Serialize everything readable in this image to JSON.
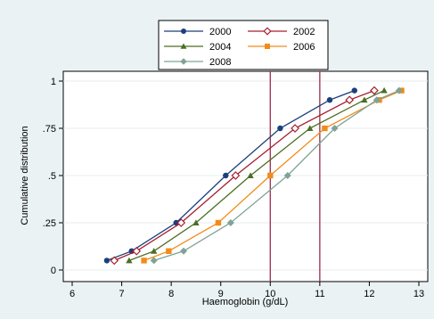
{
  "chart_data": {
    "type": "line",
    "xlabel": "Haemoglobin (g/dL)",
    "ylabel": "Cumulative distribution",
    "xlim": [
      6,
      13
    ],
    "ylim": [
      0,
      1
    ],
    "xticks": [
      6,
      7,
      8,
      9,
      10,
      11,
      12,
      13
    ],
    "xtick_labels": [
      "6",
      "7",
      "8",
      "9",
      "10",
      "11",
      "12",
      "13"
    ],
    "yticks": [
      0,
      0.25,
      0.5,
      0.75,
      1
    ],
    "ytick_labels": [
      "0",
      ".25",
      ".5",
      ".75",
      "1"
    ],
    "grid": true,
    "legend_position": "top",
    "reference_lines_x": [
      10,
      11
    ],
    "reference_line_color": "#9b2c4b",
    "series": [
      {
        "name": "2000",
        "color": "#1c3f7c",
        "marker": "circle",
        "x": [
          6.7,
          7.2,
          8.1,
          9.1,
          10.2,
          11.2,
          11.7
        ],
        "y": [
          0.05,
          0.1,
          0.25,
          0.5,
          0.75,
          0.9,
          0.95
        ]
      },
      {
        "name": "2002",
        "color": "#a61e2e",
        "marker": "diamond-hollow",
        "x": [
          6.85,
          7.3,
          8.2,
          9.3,
          10.5,
          11.6,
          12.1
        ],
        "y": [
          0.05,
          0.1,
          0.25,
          0.5,
          0.75,
          0.9,
          0.95
        ]
      },
      {
        "name": "2004",
        "color": "#4c6e22",
        "marker": "triangle",
        "x": [
          7.15,
          7.65,
          8.5,
          9.6,
          10.8,
          11.9,
          12.3
        ],
        "y": [
          0.05,
          0.1,
          0.25,
          0.5,
          0.75,
          0.9,
          0.95
        ]
      },
      {
        "name": "2006",
        "color": "#f08c1a",
        "marker": "square",
        "x": [
          7.45,
          7.95,
          8.95,
          10.0,
          11.1,
          12.2,
          12.65
        ],
        "y": [
          0.05,
          0.1,
          0.25,
          0.5,
          0.75,
          0.9,
          0.95
        ]
      },
      {
        "name": "2008",
        "color": "#7fa398",
        "marker": "diamond",
        "x": [
          7.65,
          8.25,
          9.2,
          10.35,
          11.3,
          12.15,
          12.6
        ],
        "y": [
          0.05,
          0.1,
          0.25,
          0.5,
          0.75,
          0.9,
          0.95
        ]
      }
    ]
  }
}
